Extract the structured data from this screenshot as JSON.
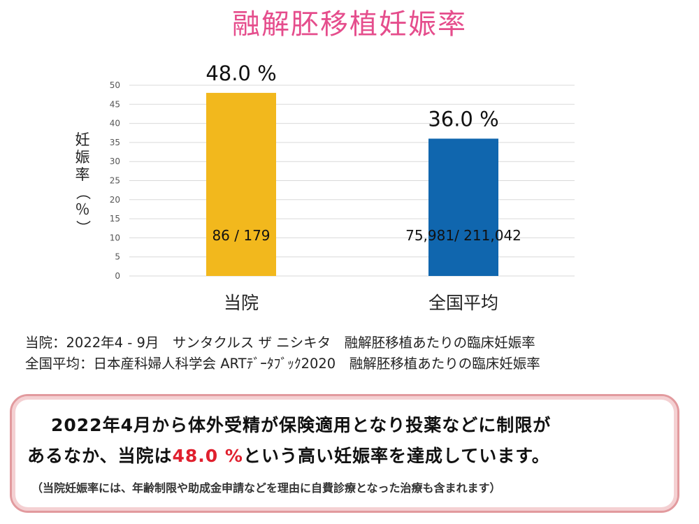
{
  "title": "融解胚移植妊娠率",
  "colors": {
    "title": "#e54d8c",
    "bar_clinic": "#f2b81d",
    "bar_national": "#1066ae",
    "highlight": "#e0202e"
  },
  "chart_data": {
    "type": "bar",
    "title": "融解胚移植妊娠率",
    "ylabel": "妊娠率（％）",
    "xlabel": "",
    "ylim": [
      0,
      50
    ],
    "yticks": [
      0,
      5,
      10,
      15,
      20,
      25,
      30,
      35,
      40,
      45,
      50
    ],
    "grid": true,
    "categories": [
      "当院",
      "全国平均"
    ],
    "values": [
      48.0,
      36.0
    ],
    "value_labels": [
      "48.0 %",
      "36.0 %"
    ],
    "count_labels": [
      "86 / 179",
      "75,981/ 211,042"
    ]
  },
  "notes": [
    "当院：2022年4 - 9月　サンタクルス ザ ニシキタ　融解胚移植あたりの臨床妊娠率",
    "全国平均：日本産科婦人科学会 ARTﾃﾞｰﾀﾌﾞｯｸ2020　融解胚移植あたりの臨床妊娠率"
  ],
  "callout": {
    "line1": "2022年4月から体外受精が保険適用となり投薬などに制限が",
    "line2_pre": "あるなか、当院は",
    "line2_highlight": "48.0 %",
    "line2_post": "という高い妊娠率を達成しています。",
    "line3": "（当院妊娠率には、年齢制限や助成金申請などを理由に自費診療となった治療も含まれます）"
  }
}
